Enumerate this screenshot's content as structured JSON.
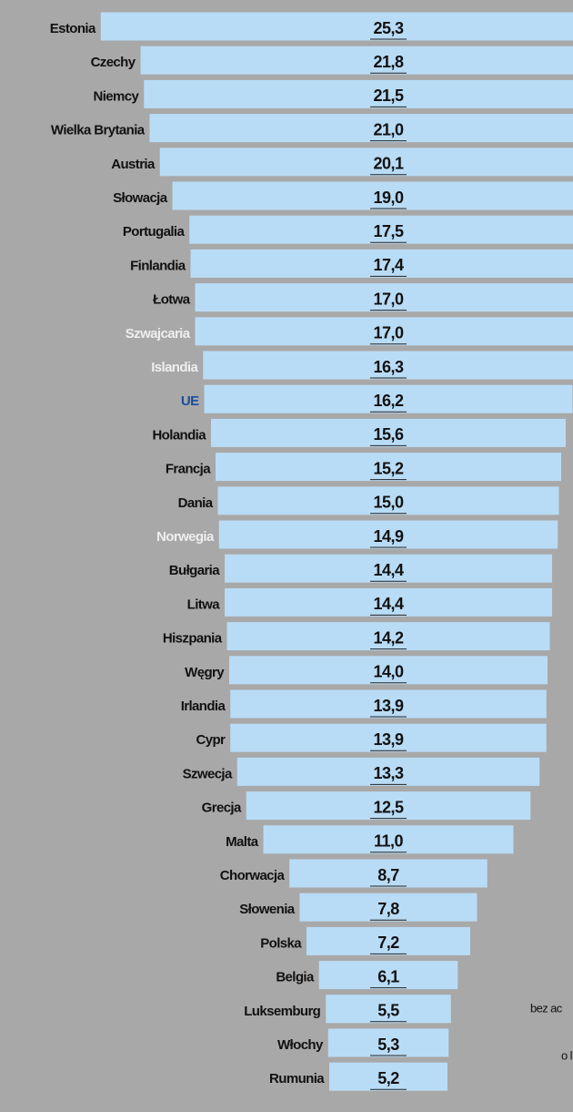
{
  "chart_data": {
    "type": "bar",
    "orientation": "horizontal",
    "categories": [
      "Estonia",
      "Czechy",
      "Niemcy",
      "Wielka Brytania",
      "Austria",
      "Słowacja",
      "Portugalia",
      "Finlandia",
      "Łotwa",
      "Szwajcaria",
      "Islandia",
      "UE",
      "Holandia",
      "Francja",
      "Dania",
      "Norwegia",
      "Bułgaria",
      "Litwa",
      "Hiszpania",
      "Węgry",
      "Irlandia",
      "Cypr",
      "Szwecja",
      "Grecja",
      "Malta",
      "Chorwacja",
      "Słowenia",
      "Polska",
      "Belgia",
      "Luksemburg",
      "Włochy",
      "Rumunia"
    ],
    "values": [
      25.3,
      21.8,
      21.5,
      21.0,
      20.1,
      19.0,
      17.5,
      17.4,
      17.0,
      17.0,
      16.3,
      16.2,
      15.6,
      15.2,
      15.0,
      14.9,
      14.4,
      14.4,
      14.2,
      14.0,
      13.9,
      13.9,
      13.3,
      12.5,
      11.0,
      8.7,
      7.8,
      7.2,
      6.1,
      5.5,
      5.3,
      5.2
    ],
    "value_labels": [
      "25,3",
      "21,8",
      "21,5",
      "21,0",
      "20,1",
      "19,0",
      "17,5",
      "17,4",
      "17,0",
      "17,0",
      "16,3",
      "16,2",
      "15,6",
      "15,2",
      "15,0",
      "14,9",
      "14,4",
      "14,4",
      "14,2",
      "14,0",
      "13,9",
      "13,9",
      "13,3",
      "12,5",
      "11,0",
      "8,7",
      "7,8",
      "7,2",
      "6,1",
      "5,5",
      "5,3",
      "5,2"
    ],
    "color": "#b9dcf6",
    "label_colors": [
      "#111",
      "#111",
      "#111",
      "#111",
      "#111",
      "#111",
      "#111",
      "#111",
      "#111",
      "#eeeeee",
      "#eeeeee",
      "#1a4fa0",
      "#111",
      "#111",
      "#111",
      "#eeeeee",
      "#111",
      "#111",
      "#111",
      "#111",
      "#111",
      "#111",
      "#111",
      "#111",
      "#111",
      "#111",
      "#111",
      "#111",
      "#111",
      "#111",
      "#111",
      "#111"
    ],
    "annotations": [
      "bez ac",
      "o l"
    ]
  }
}
